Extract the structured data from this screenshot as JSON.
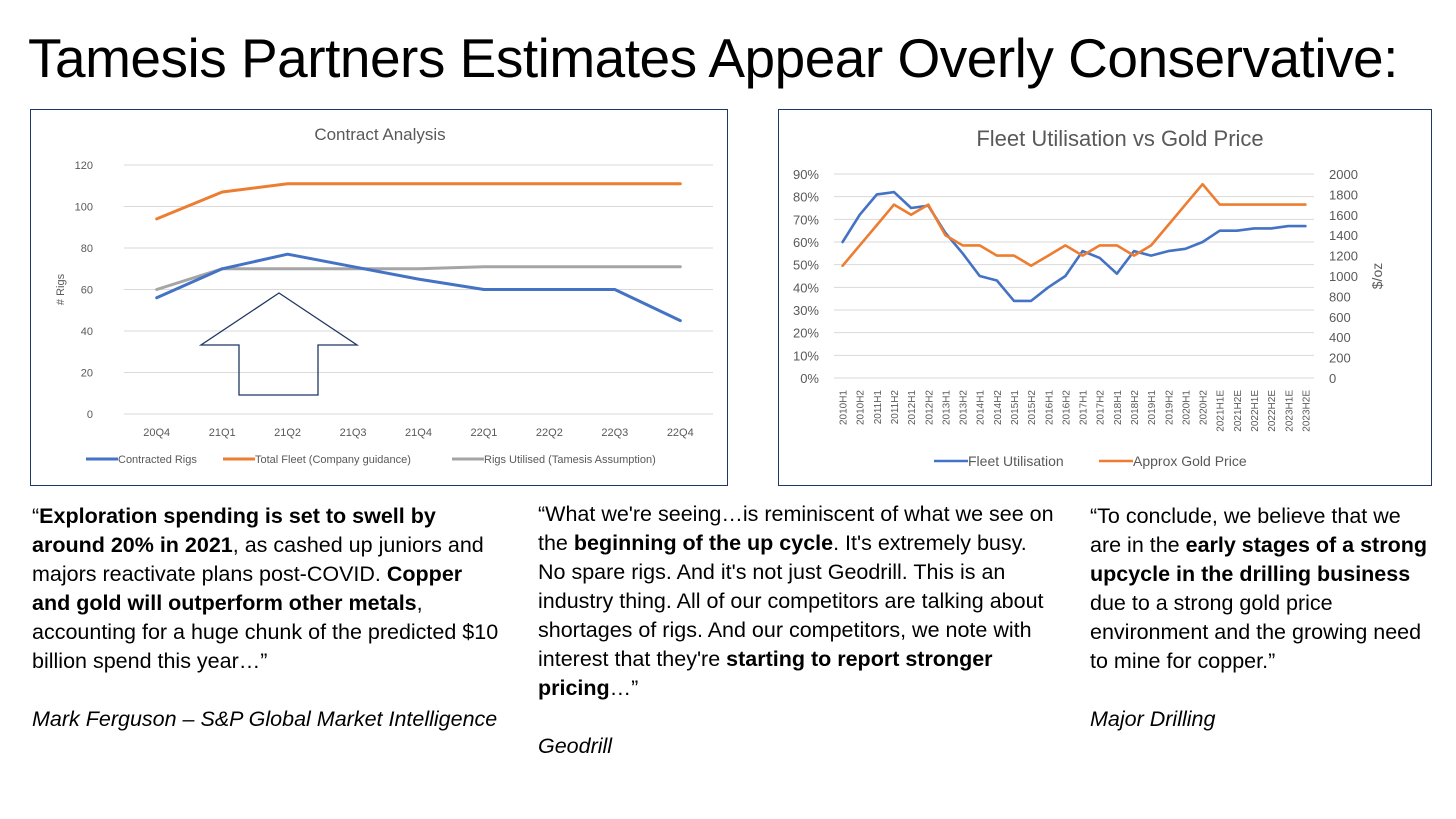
{
  "slide": {
    "title": "Tamesis Partners Estimates Appear Overly Conservative:"
  },
  "colors": {
    "blue": "#4472c4",
    "orange": "#ed7d31",
    "gray": "#a5a5a5",
    "arrow": "#1f3864",
    "panel_border": "#1f3864"
  },
  "chart_data": [
    {
      "type": "line",
      "title": "Contract Analysis",
      "xlabel": "",
      "ylabel": "# Rigs",
      "ylim": [
        0,
        120
      ],
      "yticks": [
        0,
        20,
        40,
        60,
        80,
        100,
        120
      ],
      "grid": true,
      "legend_position": "bottom",
      "categories": [
        "20Q4",
        "21Q1",
        "21Q2",
        "21Q3",
        "21Q4",
        "22Q1",
        "22Q2",
        "22Q3",
        "22Q4"
      ],
      "series": [
        {
          "name": "Contracted Rigs",
          "color": "#4472c4",
          "values": [
            56,
            70,
            77,
            71,
            65,
            60,
            60,
            60,
            45
          ]
        },
        {
          "name": "Total Fleet (Company guidance)",
          "color": "#ed7d31",
          "values": [
            94,
            107,
            111,
            111,
            111,
            111,
            111,
            111,
            111
          ]
        },
        {
          "name": "Rigs Utilised (Tamesis Assumption)",
          "color": "#a5a5a5",
          "values": [
            60,
            70,
            70,
            70,
            70,
            71,
            71,
            71,
            71
          ]
        }
      ],
      "annotation": "up-arrow-outline"
    },
    {
      "type": "line",
      "title": "Fleet Utilisation vs Gold Price",
      "xlabel": "",
      "ylabel": "",
      "y2label": "$/oz",
      "ylim": [
        0,
        0.9
      ],
      "yticks": [
        "0%",
        "10%",
        "20%",
        "30%",
        "40%",
        "50%",
        "60%",
        "70%",
        "80%",
        "90%"
      ],
      "y2lim": [
        0,
        2000
      ],
      "y2ticks": [
        0,
        200,
        400,
        600,
        800,
        1000,
        1200,
        1400,
        1600,
        1800,
        2000
      ],
      "grid": true,
      "legend_position": "bottom",
      "categories": [
        "2010H1",
        "2010H2",
        "2011H1",
        "2011H2",
        "2012H1",
        "2012H2",
        "2013H1",
        "2013H2",
        "2014H1",
        "2014H2",
        "2015H1",
        "2015H2",
        "2016H1",
        "2016H2",
        "2017H1",
        "2017H2",
        "2018H1",
        "2018H2",
        "2019H1",
        "2019H2",
        "2020H1",
        "2020H2",
        "2021H1E",
        "2021H2E",
        "2022H1E",
        "2022H2E",
        "2023H1E",
        "2023H2E"
      ],
      "series": [
        {
          "name": "Fleet Utilisation",
          "axis": "left",
          "color": "#4472c4",
          "values": [
            0.6,
            0.72,
            0.81,
            0.82,
            0.75,
            0.76,
            0.64,
            0.55,
            0.45,
            0.43,
            0.34,
            0.34,
            0.4,
            0.45,
            0.56,
            0.53,
            0.46,
            0.56,
            0.54,
            0.56,
            0.57,
            0.6,
            0.65,
            0.65,
            0.66,
            0.66,
            0.67,
            0.67
          ]
        },
        {
          "name": "Approx Gold Price",
          "axis": "right",
          "color": "#ed7d31",
          "values": [
            1100,
            1300,
            1500,
            1700,
            1600,
            1700,
            1400,
            1300,
            1300,
            1200,
            1200,
            1100,
            1200,
            1300,
            1200,
            1300,
            1300,
            1200,
            1300,
            1500,
            1700,
            1900,
            1700,
            1700,
            1700,
            1700,
            1700,
            1700
          ]
        }
      ]
    }
  ],
  "quotes": [
    {
      "segments": [
        {
          "t": "“",
          "b": false
        },
        {
          "t": "Exploration spending is set to swell by around 20% in 2021",
          "b": true
        },
        {
          "t": ", as cashed up juniors and majors reactivate plans post-COVID. ",
          "b": false
        },
        {
          "t": "Copper and gold will outperform other metals",
          "b": true
        },
        {
          "t": ", accounting for a huge chunk of the predicted $10 billion spend this year…”",
          "b": false
        }
      ],
      "author": "Mark Ferguson – S&P Global Market Intelligence"
    },
    {
      "segments": [
        {
          "t": "“What we're seeing…is reminiscent of what we see on the ",
          "b": false
        },
        {
          "t": "beginning of the up cycle",
          "b": true
        },
        {
          "t": ". It's extremely busy. No spare rigs. And it's not just Geodrill. This is an industry thing. All of our competitors are talking about shortages of rigs. And our competitors, we note with interest that they're ",
          "b": false
        },
        {
          "t": "starting to report stronger pricing",
          "b": true
        },
        {
          "t": "…”",
          "b": false
        }
      ],
      "author": "Geodrill"
    },
    {
      "segments": [
        {
          "t": "“To conclude, we believe that we are in the ",
          "b": false
        },
        {
          "t": "early stages of a strong upcycle in the drilling business",
          "b": true
        },
        {
          "t": " due to a strong gold price environment and the growing need to mine for copper.”",
          "b": false
        }
      ],
      "author": "Major Drilling"
    }
  ]
}
